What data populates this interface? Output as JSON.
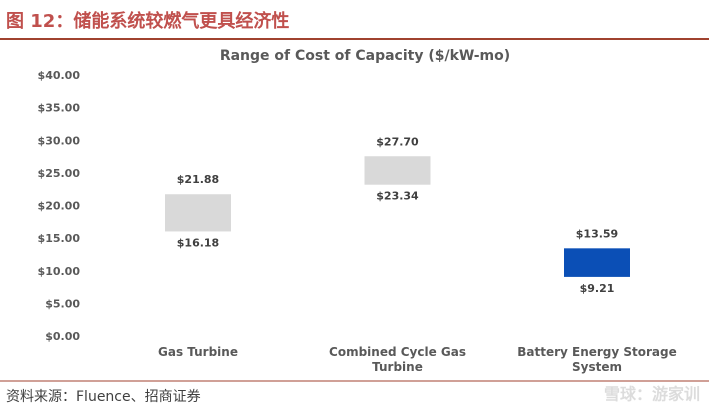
{
  "figure_title": "图 12：储能系统较燃气更具经济性",
  "source": "资料来源：Fluence、招商证券",
  "watermark": "雪球：游家训",
  "chart_data": {
    "type": "range",
    "title": "Range of Cost of Capacity ($/kW-mo)",
    "categories": [
      "Gas Turbine",
      "Combined Cycle Gas Turbine",
      "Battery Energy Storage System"
    ],
    "low": [
      16.18,
      23.34,
      9.21
    ],
    "high": [
      21.88,
      27.7,
      13.59
    ],
    "low_labels": [
      "$16.18",
      "$23.34",
      "$9.21"
    ],
    "high_labels": [
      "$21.88",
      "$27.70",
      "$13.59"
    ],
    "colors": [
      "#d9d9d9",
      "#d9d9d9",
      "#0b4fb6"
    ],
    "ylim": [
      0,
      40
    ],
    "yticks": [
      {
        "value": 0,
        "label": "$0.00"
      },
      {
        "value": 5,
        "label": "$5.00"
      },
      {
        "value": 10,
        "label": "$10.00"
      },
      {
        "value": 15,
        "label": "$15.00"
      },
      {
        "value": 20,
        "label": "$20.00"
      },
      {
        "value": 25,
        "label": "$25.00"
      },
      {
        "value": 30,
        "label": "$30.00"
      },
      {
        "value": 35,
        "label": "$35.00"
      },
      {
        "value": 40,
        "label": "$40.00"
      }
    ]
  }
}
